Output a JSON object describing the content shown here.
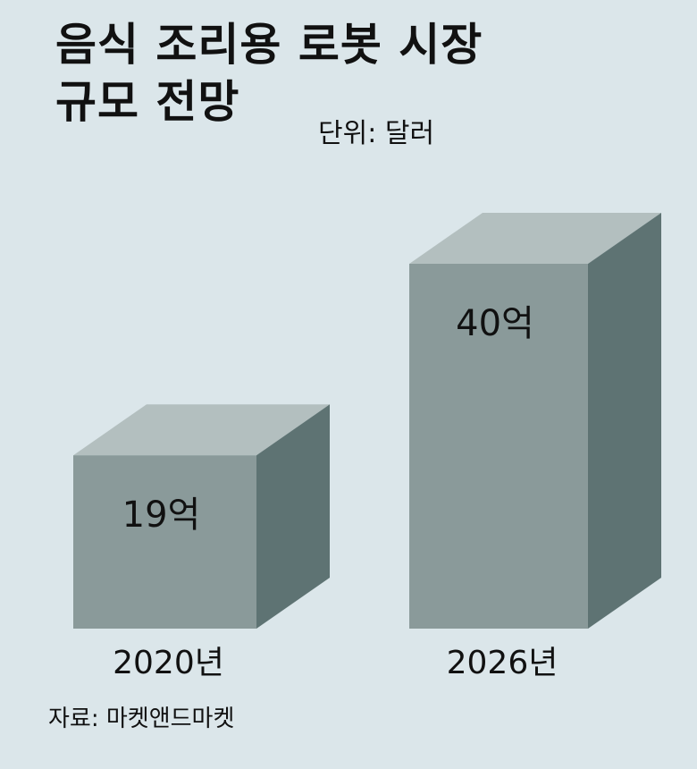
{
  "title_lines": [
    "음식 조리용 로봇 시장",
    "규모 전망"
  ],
  "unit": "단위: 달러",
  "source": "자료: 마켓앤드마켓",
  "colors": {
    "background": "#dbe6ea",
    "front": "#8a9a9a",
    "top": "#b3bfbf",
    "side": "#5e7373",
    "text": "#111111"
  },
  "chart_data": {
    "type": "bar",
    "style": "3d-box",
    "categories": [
      "2020년",
      "2026년"
    ],
    "values": [
      19,
      40
    ],
    "value_labels": [
      "19억",
      "40억"
    ],
    "unit": "억 달러"
  }
}
